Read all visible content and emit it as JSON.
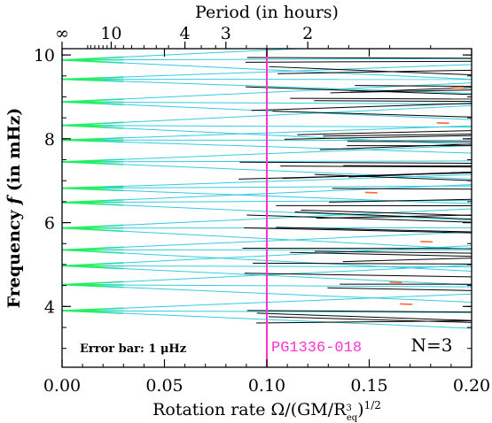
{
  "chart_data": {
    "type": "line",
    "top_axis_label": "Period (in hours)",
    "top_tick_labels": [
      {
        "label": "∞",
        "x": 0.0
      },
      {
        "label": "10",
        "x": 0.024
      },
      {
        "label": "4",
        "x": 0.06
      },
      {
        "label": "3",
        "x": 0.08
      },
      {
        "label": "2",
        "x": 0.12
      }
    ],
    "xlabel_prefix": "Rotation rate Ω/(GM/R",
    "xlabel_sup": "3",
    "xlabel_sub": "eq",
    "xlabel_suffix": ")",
    "xlabel_exponent": "1/2",
    "ylabel_prefix": "Frequency ",
    "ylabel_var": "f",
    "ylabel_suffix": " (in mHz)",
    "xlim": [
      0.0,
      0.2
    ],
    "ylim": [
      2.55,
      10.15
    ],
    "x_ticks": [
      0.0,
      0.05,
      0.1,
      0.15,
      0.2
    ],
    "x_tick_labels": [
      "0.00",
      "0.05",
      "0.10",
      "0.15",
      "0.20"
    ],
    "y_ticks": [
      4,
      6,
      8,
      10
    ],
    "y_tick_labels": [
      "4",
      "6",
      "8",
      "10"
    ],
    "grid": false,
    "mode_start_frequencies": [
      3.9,
      4.52,
      4.97,
      5.35,
      5.87,
      6.48,
      6.82,
      7.45,
      7.97,
      8.32,
      8.88,
      9.42,
      9.88
    ],
    "series_colors": {
      "low_rotation": "#22ee66",
      "mode_line": "#33ccdd",
      "high_rotation": "#000000",
      "highlight": "#ff6633"
    },
    "marker": {
      "label": "PG1336-018",
      "x": 0.1,
      "color": "#ff33cc"
    },
    "error_bar_text": "Error bar: 1 μHz",
    "n_label": "N=3"
  }
}
